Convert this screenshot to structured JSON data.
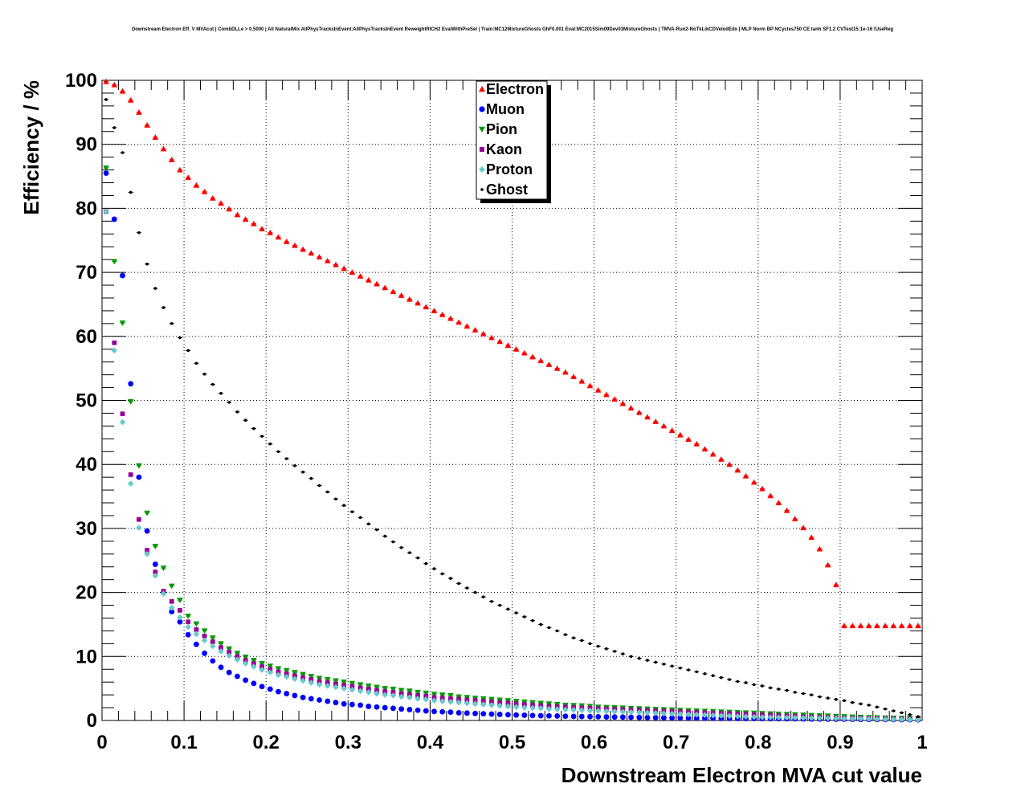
{
  "page": {
    "title": "Downstream Electron Eff. V MVAcut | CombDLLe > 0.5000 | All NaturalMix AllPhysTracksInEvent:AllPhysTracksInEvent ReweightRICH2 EvalWithPreSel | Train:MC12MixtureGhosts GhF0.001 Eval:MC2015Sim09Dev03MixtureGhosts | TMVA-Run2-NoTkLikCDVelodEdx | MLP Norm BP NCycles750 CE tanh SF1.2 CVTest15:1e-16 !UseReg"
  },
  "chart_data": {
    "type": "scatter",
    "title": "Downstream Electron Eff. V MVAcut | CombDLLe > 0.5000 | All NaturalMix AllPhysTracksInEvent:AllPhysTracksInEvent ReweightRICH2 EvalWithPreSel | Train:MC12MixtureGhosts GhF0.001 Eval:MC2015Sim09Dev03MixtureGhosts | TMVA-Run2-NoTkLikCDVelodEdx | MLP Norm BP NCycles750 CE tanh SF1.2 CVTest15:1e-16 !UseReg",
    "xlabel": "Downstream Electron MVA cut value",
    "ylabel": "Efficiency / %",
    "xlim": [
      0,
      1
    ],
    "ylim": [
      0,
      100
    ],
    "grid": true,
    "legend_position": "top-center",
    "x_ticks": [
      "0",
      "0.1",
      "0.2",
      "0.3",
      "0.4",
      "0.5",
      "0.6",
      "0.7",
      "0.8",
      "0.9",
      "1"
    ],
    "y_ticks": [
      "0",
      "10",
      "20",
      "30",
      "40",
      "50",
      "60",
      "70",
      "80",
      "90",
      "100"
    ],
    "x": [
      0.005,
      0.015,
      0.025,
      0.035,
      0.045,
      0.055,
      0.065,
      0.075,
      0.085,
      0.095,
      0.105,
      0.115,
      0.125,
      0.135,
      0.145,
      0.155,
      0.165,
      0.175,
      0.185,
      0.195,
      0.205,
      0.215,
      0.225,
      0.235,
      0.245,
      0.255,
      0.265,
      0.275,
      0.285,
      0.295,
      0.305,
      0.315,
      0.325,
      0.335,
      0.345,
      0.355,
      0.365,
      0.375,
      0.385,
      0.395,
      0.405,
      0.415,
      0.425,
      0.435,
      0.445,
      0.455,
      0.465,
      0.475,
      0.485,
      0.495,
      0.505,
      0.515,
      0.525,
      0.535,
      0.545,
      0.555,
      0.565,
      0.575,
      0.585,
      0.595,
      0.605,
      0.615,
      0.625,
      0.635,
      0.645,
      0.655,
      0.665,
      0.675,
      0.685,
      0.695,
      0.705,
      0.715,
      0.725,
      0.735,
      0.745,
      0.755,
      0.765,
      0.775,
      0.785,
      0.795,
      0.805,
      0.815,
      0.825,
      0.835,
      0.845,
      0.855,
      0.865,
      0.875,
      0.885,
      0.895,
      0.905,
      0.915,
      0.925,
      0.935,
      0.945,
      0.955,
      0.965,
      0.975,
      0.985,
      0.995
    ],
    "series": [
      {
        "name": "Electron",
        "color": "#ff0000",
        "marker": "triangle-up",
        "values": [
          99.8,
          99.3,
          98.3,
          96.9,
          95.0,
          93.0,
          91.1,
          89.3,
          87.6,
          86.0,
          84.8,
          83.6,
          82.6,
          81.6,
          80.8,
          79.9,
          79.0,
          78.3,
          77.6,
          76.8,
          76.2,
          75.5,
          74.8,
          74.2,
          73.6,
          73.0,
          72.4,
          71.8,
          71.2,
          70.6,
          70.0,
          69.4,
          68.8,
          68.2,
          67.6,
          67.0,
          66.4,
          65.8,
          65.2,
          64.6,
          64.0,
          63.4,
          62.8,
          62.2,
          61.6,
          61.0,
          60.4,
          59.8,
          59.2,
          58.6,
          58.0,
          57.4,
          56.8,
          56.2,
          55.6,
          55.0,
          54.4,
          53.7,
          53.0,
          52.3,
          51.6,
          50.9,
          50.2,
          49.5,
          48.8,
          48.1,
          47.4,
          46.7,
          46.0,
          45.3,
          44.6,
          43.9,
          43.2,
          42.4,
          41.6,
          40.8,
          40.0,
          39.1,
          38.2,
          37.2,
          36.2,
          35.1,
          34.0,
          32.8,
          31.5,
          30.1,
          28.6,
          26.8,
          24.3,
          21.2,
          14.8,
          14.8,
          14.8,
          14.8,
          14.8,
          14.8,
          14.8,
          14.8,
          14.8,
          14.8
        ]
      },
      {
        "name": "Muon",
        "color": "#0000ff",
        "marker": "circle",
        "values": [
          85.5,
          78.3,
          69.5,
          52.6,
          38.0,
          29.6,
          24.4,
          20.0,
          17.0,
          15.4,
          13.4,
          11.9,
          10.5,
          9.3,
          8.3,
          7.5,
          6.9,
          6.3,
          5.8,
          5.3,
          4.9,
          4.5,
          4.2,
          3.9,
          3.6,
          3.4,
          3.2,
          3.0,
          2.8,
          2.6,
          2.5,
          2.4,
          2.2,
          2.1,
          2.0,
          1.9,
          1.8,
          1.7,
          1.6,
          1.5,
          1.4,
          1.35,
          1.3,
          1.2,
          1.15,
          1.1,
          1.05,
          1.0,
          0.95,
          0.9,
          0.85,
          0.82,
          0.78,
          0.75,
          0.72,
          0.7,
          0.67,
          0.64,
          0.62,
          0.6,
          0.58,
          0.56,
          0.54,
          0.52,
          0.5,
          0.48,
          0.46,
          0.45,
          0.43,
          0.42,
          0.4,
          0.39,
          0.38,
          0.36,
          0.35,
          0.34,
          0.33,
          0.32,
          0.31,
          0.3,
          0.29,
          0.28,
          0.27,
          0.26,
          0.25,
          0.24,
          0.23,
          0.22,
          0.21,
          0.2,
          0.19,
          0.18,
          0.17,
          0.16,
          0.15,
          0.14,
          0.13,
          0.12,
          0.11,
          0.1
        ]
      },
      {
        "name": "Pion",
        "color": "#009900",
        "marker": "triangle-down",
        "values": [
          86.3,
          71.7,
          62.1,
          49.8,
          39.8,
          32.4,
          27.2,
          23.8,
          21.0,
          18.8,
          16.3,
          15.1,
          14.0,
          12.9,
          12.0,
          11.2,
          10.5,
          9.9,
          9.4,
          8.9,
          8.5,
          8.1,
          7.8,
          7.5,
          7.2,
          6.9,
          6.6,
          6.4,
          6.2,
          6.0,
          5.8,
          5.6,
          5.4,
          5.2,
          5.0,
          4.9,
          4.7,
          4.6,
          4.4,
          4.3,
          4.1,
          4.0,
          3.9,
          3.7,
          3.6,
          3.5,
          3.4,
          3.3,
          3.2,
          3.1,
          3.0,
          2.9,
          2.8,
          2.7,
          2.6,
          2.5,
          2.4,
          2.35,
          2.3,
          2.2,
          2.1,
          2.05,
          2.0,
          1.95,
          1.9,
          1.85,
          1.8,
          1.75,
          1.7,
          1.65,
          1.6,
          1.55,
          1.5,
          1.45,
          1.4,
          1.35,
          1.3,
          1.25,
          1.2,
          1.15,
          1.1,
          1.05,
          1.0,
          0.95,
          0.9,
          0.85,
          0.8,
          0.75,
          0.7,
          0.65,
          0.6,
          0.55,
          0.5,
          0.47,
          0.44,
          0.41,
          0.38,
          0.35,
          0.32,
          0.3
        ]
      },
      {
        "name": "Kaon",
        "color": "#990099",
        "marker": "square",
        "values": [
          79.5,
          59.0,
          47.9,
          38.4,
          31.4,
          26.6,
          23.2,
          20.2,
          18.6,
          17.2,
          15.4,
          14.2,
          13.2,
          12.3,
          11.4,
          10.7,
          10.0,
          9.4,
          8.9,
          8.4,
          8.0,
          7.6,
          7.3,
          7.0,
          6.7,
          6.4,
          6.1,
          5.9,
          5.7,
          5.5,
          5.3,
          5.1,
          4.9,
          4.7,
          4.5,
          4.4,
          4.2,
          4.1,
          3.9,
          3.8,
          3.6,
          3.5,
          3.4,
          3.3,
          3.2,
          3.1,
          3.0,
          2.9,
          2.8,
          2.7,
          2.6,
          2.5,
          2.4,
          2.3,
          2.2,
          2.15,
          2.1,
          2.0,
          1.95,
          1.9,
          1.85,
          1.8,
          1.75,
          1.7,
          1.65,
          1.6,
          1.55,
          1.5,
          1.45,
          1.4,
          1.35,
          1.3,
          1.25,
          1.2,
          1.15,
          1.1,
          1.05,
          1.0,
          0.95,
          0.9,
          0.85,
          0.8,
          0.75,
          0.7,
          0.65,
          0.6,
          0.55,
          0.5,
          0.45,
          0.4,
          0.38,
          0.36,
          0.34,
          0.32,
          0.3,
          0.28,
          0.26,
          0.24,
          0.22,
          0.2
        ]
      },
      {
        "name": "Proton",
        "color": "#66cccc",
        "marker": "diamond",
        "values": [
          79.5,
          57.8,
          46.6,
          37.0,
          30.1,
          26.0,
          22.6,
          19.8,
          17.6,
          16.1,
          14.6,
          13.5,
          12.5,
          11.6,
          10.8,
          10.1,
          9.5,
          8.9,
          8.4,
          7.9,
          7.5,
          7.1,
          6.8,
          6.5,
          6.2,
          5.9,
          5.6,
          5.4,
          5.2,
          5.0,
          4.8,
          4.6,
          4.4,
          4.2,
          4.0,
          3.9,
          3.7,
          3.6,
          3.4,
          3.3,
          3.1,
          3.0,
          2.9,
          2.8,
          2.7,
          2.6,
          2.5,
          2.4,
          2.3,
          2.2,
          2.1,
          2.0,
          1.95,
          1.9,
          1.8,
          1.75,
          1.7,
          1.65,
          1.6,
          1.55,
          1.5,
          1.45,
          1.4,
          1.35,
          1.3,
          1.25,
          1.2,
          1.15,
          1.1,
          1.05,
          1.0,
          0.95,
          0.9,
          0.85,
          0.8,
          0.75,
          0.7,
          0.65,
          0.6,
          0.55,
          0.5,
          0.48,
          0.46,
          0.44,
          0.42,
          0.4,
          0.38,
          0.36,
          0.34,
          0.32,
          0.3,
          0.28,
          0.26,
          0.24,
          0.22,
          0.2,
          0.18,
          0.16,
          0.14,
          0.12
        ]
      },
      {
        "name": "Ghost",
        "color": "#000000",
        "marker": "cross",
        "values": [
          97.0,
          92.6,
          88.7,
          82.5,
          76.2,
          71.3,
          67.5,
          64.5,
          62.0,
          59.8,
          57.8,
          55.8,
          54.1,
          52.5,
          51.1,
          49.7,
          48.2,
          46.9,
          45.6,
          44.4,
          43.2,
          42.0,
          40.9,
          39.8,
          38.8,
          37.8,
          36.7,
          35.7,
          34.6,
          33.6,
          32.6,
          31.7,
          30.7,
          29.8,
          28.8,
          27.9,
          27.0,
          26.2,
          25.4,
          24.5,
          23.7,
          22.9,
          22.2,
          21.4,
          20.7,
          20.0,
          19.3,
          18.6,
          18.0,
          17.4,
          16.8,
          16.2,
          15.6,
          15.0,
          14.5,
          14.0,
          13.4,
          12.9,
          12.5,
          12.0,
          11.6,
          11.2,
          10.8,
          10.4,
          10.0,
          9.7,
          9.4,
          9.1,
          8.8,
          8.5,
          8.2,
          7.9,
          7.6,
          7.3,
          7.0,
          6.7,
          6.4,
          6.1,
          5.9,
          5.6,
          5.4,
          5.1,
          4.9,
          4.7,
          4.4,
          4.2,
          4.0,
          3.7,
          3.5,
          3.3,
          3.1,
          2.8,
          2.6,
          2.4,
          2.1,
          1.8,
          1.5,
          1.2,
          0.9,
          0.6
        ]
      }
    ]
  }
}
